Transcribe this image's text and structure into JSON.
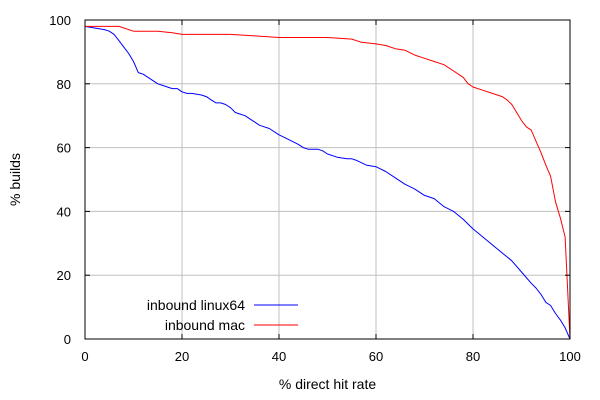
{
  "chart_data": {
    "type": "line",
    "title": "",
    "xlabel": "% direct hit rate",
    "ylabel": "% builds",
    "xlim": [
      0,
      100
    ],
    "ylim": [
      0,
      100
    ],
    "xticks": [
      0,
      20,
      40,
      60,
      80,
      100
    ],
    "yticks": [
      0,
      20,
      40,
      60,
      80,
      100
    ],
    "grid": true,
    "legend": "bottom-left",
    "series": [
      {
        "name": "inbound linux64",
        "color": "#0000ff",
        "x": [
          0,
          2,
          4,
          5,
          6,
          7,
          8,
          9,
          10,
          11,
          12,
          13,
          15,
          16,
          17,
          18,
          19,
          20,
          21,
          22,
          24,
          25,
          26,
          27,
          28,
          29,
          30,
          31,
          32,
          33,
          34,
          35,
          36,
          38,
          40,
          42,
          44,
          45,
          46,
          48,
          49,
          50,
          52,
          54,
          55,
          56,
          58,
          60,
          62,
          64,
          66,
          68,
          70,
          72,
          74,
          76,
          78,
          80,
          82,
          84,
          86,
          88,
          90,
          92,
          93,
          94,
          95,
          96,
          97,
          98,
          99,
          100
        ],
        "y": [
          98,
          97.5,
          97,
          96.5,
          95.5,
          93.5,
          91.5,
          89.5,
          87,
          83.5,
          83,
          82,
          80,
          79.5,
          79,
          78.5,
          78.5,
          77.5,
          77,
          77,
          76.5,
          76,
          75,
          74,
          74,
          73.5,
          72.5,
          71,
          70.5,
          70,
          69,
          68,
          67,
          66,
          64,
          62.5,
          61,
          60,
          59.5,
          59.5,
          59,
          58,
          57,
          56.5,
          56.5,
          56,
          54.5,
          54,
          52.5,
          50.5,
          48.5,
          47,
          45,
          44,
          41.5,
          40,
          37.5,
          34.5,
          32,
          29.5,
          27,
          24.5,
          21,
          17.5,
          16,
          14,
          11.5,
          10.5,
          8,
          6,
          3.5,
          0
        ]
      },
      {
        "name": "inbound mac",
        "color": "#ff0000",
        "x": [
          0,
          5,
          7,
          8,
          9,
          10,
          11,
          15,
          18,
          20,
          25,
          30,
          35,
          40,
          45,
          50,
          55,
          57,
          60,
          62,
          64,
          66,
          68,
          70,
          72,
          74,
          76,
          77,
          78,
          79,
          80,
          82,
          84,
          86,
          87,
          88,
          89,
          90,
          91,
          92,
          93,
          94,
          95,
          96,
          97,
          98,
          99,
          100
        ],
        "y": [
          98,
          98,
          98,
          97.5,
          97,
          96.5,
          96.5,
          96.5,
          96,
          95.5,
          95.5,
          95.5,
          95,
          94.5,
          94.5,
          94.5,
          94,
          93,
          92.5,
          92,
          91,
          90.5,
          89,
          88,
          87,
          86,
          84,
          83,
          82,
          80,
          79,
          78,
          77,
          76,
          75,
          73.5,
          71,
          68.5,
          66.5,
          65.5,
          62,
          58.5,
          54.5,
          51,
          43,
          38,
          32,
          0
        ]
      }
    ]
  }
}
